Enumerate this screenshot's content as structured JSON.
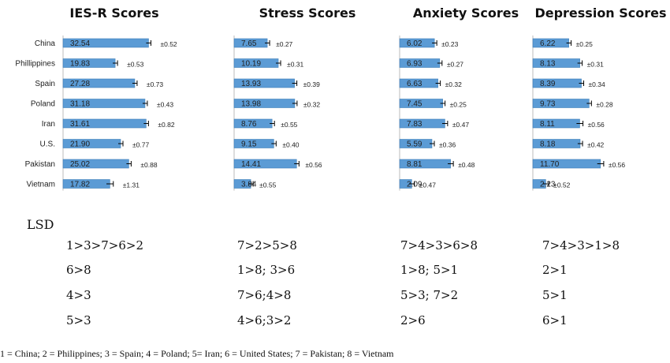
{
  "chart_data": [
    {
      "type": "bar",
      "title": "IES-R Scores",
      "categories": [
        "China",
        "Phillippines",
        "Spain",
        "Poland",
        "Iran",
        "U.S.",
        "Pakistan",
        "Vietnam"
      ],
      "values": [
        32.54,
        19.83,
        27.28,
        31.18,
        31.61,
        21.9,
        25.02,
        17.82
      ],
      "value_labels": [
        "32.54",
        "19.83",
        "27.28",
        "31.18",
        "31.61",
        "21.90",
        "25.02",
        "17.82"
      ],
      "errors": [
        0.52,
        0.53,
        0.73,
        0.43,
        0.82,
        0.77,
        0.88,
        1.31
      ],
      "error_labels": [
        "±0.52",
        "±0.53",
        "±0.73",
        "±0.43",
        "±0.82",
        "±0.77",
        "±0.88",
        "±1.31"
      ],
      "xlim": [
        0,
        45
      ],
      "lsd": [
        "1>3>7>6>2",
        "6>8",
        "4>3",
        "5>3"
      ]
    },
    {
      "type": "bar",
      "title": "Stress Scores",
      "categories": [
        "China",
        "Phillippines",
        "Spain",
        "Poland",
        "Iran",
        "U.S.",
        "Pakistan",
        "Vietnam"
      ],
      "values": [
        7.65,
        10.19,
        13.93,
        13.98,
        8.76,
        9.15,
        14.41,
        3.84
      ],
      "value_labels": [
        "7.65",
        "10.19",
        "13.93",
        "13.98",
        "8.76",
        "9.15",
        "14.41",
        "3.84"
      ],
      "errors": [
        0.27,
        0.31,
        0.39,
        0.32,
        0.55,
        0.4,
        0.56,
        0.55
      ],
      "error_labels": [
        "±0.27",
        "±0.31",
        "±0.39",
        "±0.32",
        "±0.55",
        "±0.40",
        "±0.56",
        "±0.55"
      ],
      "xlim": [
        0,
        20
      ],
      "lsd": [
        "7>2>5>8",
        "1>8; 3>6",
        "7>6;4>8",
        "4>6;3>2"
      ]
    },
    {
      "type": "bar",
      "title": "Anxiety Scores",
      "categories": [
        "China",
        "Phillippines",
        "Spain",
        "Poland",
        "Iran",
        "U.S.",
        "Pakistan",
        "Vietnam"
      ],
      "values": [
        6.02,
        6.93,
        6.63,
        7.45,
        7.83,
        5.59,
        8.81,
        2.09
      ],
      "value_labels": [
        "6.02",
        "6.93",
        "6.63",
        "7.45",
        "7.83",
        "5.59",
        "8.81",
        "2.09"
      ],
      "errors": [
        0.23,
        0.27,
        0.32,
        0.25,
        0.47,
        0.36,
        0.48,
        0.47
      ],
      "error_labels": [
        "±0.23",
        "±0.27",
        "±0.32",
        "±0.25",
        "±0.47",
        "±0.36",
        "±0.48",
        "±0.47"
      ],
      "xlim": [
        0,
        15
      ],
      "lsd": [
        "7>4>3>6>8",
        "1>8; 5>1",
        "5>3; 7>2",
        "2>6"
      ]
    },
    {
      "type": "bar",
      "title": "Depression Scores",
      "categories": [
        "China",
        "Phillippines",
        "Spain",
        "Poland",
        "Iran",
        "U.S.",
        "Pakistan",
        "Vietnam"
      ],
      "values": [
        6.22,
        8.13,
        8.39,
        9.73,
        8.11,
        8.18,
        11.7,
        2.23
      ],
      "value_labels": [
        "6.22",
        "8.13",
        "8.39",
        "9.73",
        "8.11",
        "8.18",
        "11.70",
        "2.23"
      ],
      "errors": [
        0.25,
        0.31,
        0.34,
        0.28,
        0.56,
        0.42,
        0.56,
        0.52
      ],
      "error_labels": [
        "±0.25",
        "±0.31",
        "±0.34",
        "±0.28",
        "±0.56",
        "±0.42",
        "±0.56",
        "±0.52"
      ],
      "xlim": [
        0,
        15
      ],
      "lsd": [
        "7>4>3>1>8",
        "2>1",
        "5>1",
        "6>1"
      ]
    }
  ],
  "lsd_title": "LSD",
  "footnote": "1 = China; 2 = Philippines; 3 = Spain; 4 = Poland; 5= Iran; 6 = United States; 7 = Pakistan; 8 = Vietnam",
  "colors": {
    "bar": "#5b9bd5",
    "bar_edge": "#3f7fb8",
    "text": "#222222"
  }
}
